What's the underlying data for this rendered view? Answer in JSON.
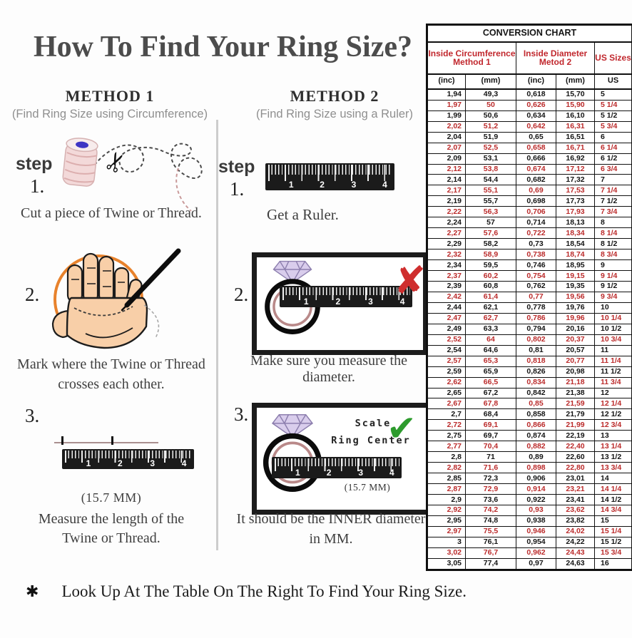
{
  "page": {
    "title": "How To Find Your Ring Size?",
    "footer_symbol": "✱",
    "footer_note": "Look Up At The Table On The Right To Find Your Ring Size."
  },
  "icons": {
    "scissors": "✂",
    "check": "✔",
    "cross": "✘"
  },
  "ruler_numbers": [
    "1",
    "2",
    "3",
    "4"
  ],
  "method1": {
    "heading": "METHOD 1",
    "subtitle": "(Find Ring Size using Circumference)",
    "step_label": "step",
    "steps": [
      {
        "num": "1.",
        "caption": "Cut a piece of Twine or Thread."
      },
      {
        "num": "2.",
        "caption_line1": "Mark where the Twine or Thread",
        "caption_line2": "crosses each other."
      },
      {
        "num": "3.",
        "measurement": "(15.7 MM)",
        "caption_line1": "Measure the length of the",
        "caption_line2": "Twine or Thread."
      }
    ]
  },
  "method2": {
    "heading": "METHOD 2",
    "subtitle": "(Find Ring Size using a Ruler)",
    "step_label": "step",
    "steps": [
      {
        "num": "1.",
        "caption": "Get a Ruler."
      },
      {
        "num": "2.",
        "caption": "Make sure you measure the diameter."
      },
      {
        "num": "3.",
        "scale_label_line1": "Scale",
        "scale_label_line2": "Ring Center",
        "measurement": "(15.7 MM)",
        "caption_line1": "It should be the INNER diameter",
        "caption_line2": "in MM."
      }
    ]
  },
  "conversion_table": {
    "title": "CONVERSION CHART",
    "col_groups": [
      {
        "line1": "Inside Circumference",
        "line2": "Method 1"
      },
      {
        "line1": "Inside Diameter",
        "line2": "Metod 2"
      },
      {
        "line1": "US Sizes",
        "line2": ""
      }
    ],
    "sub_headers": [
      "(inc)",
      "(mm)",
      "(inc)",
      "(mm)",
      "US"
    ],
    "rows": [
      [
        "1,94",
        "49,3",
        "0,618",
        "15,70",
        "5"
      ],
      [
        "1,97",
        "50",
        "0,626",
        "15,90",
        "5 1/4"
      ],
      [
        "1,99",
        "50,6",
        "0,634",
        "16,10",
        "5 1/2"
      ],
      [
        "2,02",
        "51,2",
        "0,642",
        "16,31",
        "5 3/4"
      ],
      [
        "2,04",
        "51,9",
        "0,65",
        "16,51",
        "6"
      ],
      [
        "2,07",
        "52,5",
        "0,658",
        "16,71",
        "6 1/4"
      ],
      [
        "2,09",
        "53,1",
        "0,666",
        "16,92",
        "6 1/2"
      ],
      [
        "2,12",
        "53,8",
        "0,674",
        "17,12",
        "6 3/4"
      ],
      [
        "2,14",
        "54,4",
        "0,682",
        "17,32",
        "7"
      ],
      [
        "2,17",
        "55,1",
        "0,69",
        "17,53",
        "7 1/4"
      ],
      [
        "2,19",
        "55,7",
        "0,698",
        "17,73",
        "7 1/2"
      ],
      [
        "2,22",
        "56,3",
        "0,706",
        "17,93",
        "7 3/4"
      ],
      [
        "2,24",
        "57",
        "0,714",
        "18,13",
        "8"
      ],
      [
        "2,27",
        "57,6",
        "0,722",
        "18,34",
        "8 1/4"
      ],
      [
        "2,29",
        "58,2",
        "0,73",
        "18,54",
        "8 1/2"
      ],
      [
        "2,32",
        "58,9",
        "0,738",
        "18,74",
        "8 3/4"
      ],
      [
        "2,34",
        "59,5",
        "0,746",
        "18,95",
        "9"
      ],
      [
        "2,37",
        "60,2",
        "0,754",
        "19,15",
        "9 1/4"
      ],
      [
        "2,39",
        "60,8",
        "0,762",
        "19,35",
        "9 1/2"
      ],
      [
        "2,42",
        "61,4",
        "0,77",
        "19,56",
        "9 3/4"
      ],
      [
        "2,44",
        "62,1",
        "0,778",
        "19,76",
        "10"
      ],
      [
        "2,47",
        "62,7",
        "0,786",
        "19,96",
        "10 1/4"
      ],
      [
        "2,49",
        "63,3",
        "0,794",
        "20,16",
        "10 1/2"
      ],
      [
        "2,52",
        "64",
        "0,802",
        "20,37",
        "10 3/4"
      ],
      [
        "2,54",
        "64,6",
        "0,81",
        "20,57",
        "11"
      ],
      [
        "2,57",
        "65,3",
        "0,818",
        "20,77",
        "11 1/4"
      ],
      [
        "2,59",
        "65,9",
        "0,826",
        "20,98",
        "11 1/2"
      ],
      [
        "2,62",
        "66,5",
        "0,834",
        "21,18",
        "11 3/4"
      ],
      [
        "2,65",
        "67,2",
        "0,842",
        "21,38",
        "12"
      ],
      [
        "2,67",
        "67,8",
        "0,85",
        "21,59",
        "12 1/4"
      ],
      [
        "2,7",
        "68,4",
        "0,858",
        "21,79",
        "12 1/2"
      ],
      [
        "2,72",
        "69,1",
        "0,866",
        "21,99",
        "12 3/4"
      ],
      [
        "2,75",
        "69,7",
        "0,874",
        "22,19",
        "13"
      ],
      [
        "2,77",
        "70,4",
        "0,882",
        "22,40",
        "13 1/4"
      ],
      [
        "2,8",
        "71",
        "0,89",
        "22,60",
        "13 1/2"
      ],
      [
        "2,82",
        "71,6",
        "0,898",
        "22,80",
        "13 3/4"
      ],
      [
        "2,85",
        "72,3",
        "0,906",
        "23,01",
        "14"
      ],
      [
        "2,87",
        "72,9",
        "0,914",
        "23,21",
        "14 1/4"
      ],
      [
        "2,9",
        "73,6",
        "0,922",
        "23,41",
        "14 1/2"
      ],
      [
        "2,92",
        "74,2",
        "0,93",
        "23,62",
        "14 3/4"
      ],
      [
        "2,95",
        "74,8",
        "0,938",
        "23,82",
        "15"
      ],
      [
        "2,97",
        "75,5",
        "0,946",
        "24,02",
        "15 1/4"
      ],
      [
        "3",
        "76,1",
        "0,954",
        "24,22",
        "15 1/2"
      ],
      [
        "3,02",
        "76,7",
        "0,962",
        "24,43",
        "15 3/4"
      ],
      [
        "3,05",
        "77,4",
        "0,97",
        "24,63",
        "16"
      ]
    ]
  },
  "colors": {
    "table_header_red": "#c1272d",
    "table_row_red": "#bb2b2b",
    "circle_orange": "#e8822c",
    "hand_skin": "#f8cfa8",
    "ring_inner": "#b98989",
    "diamond_fill": "#d9cdec",
    "check_green": "#2d9b2d",
    "x_red": "#cf2e2e",
    "ruler_black": "#1b1b1b"
  }
}
